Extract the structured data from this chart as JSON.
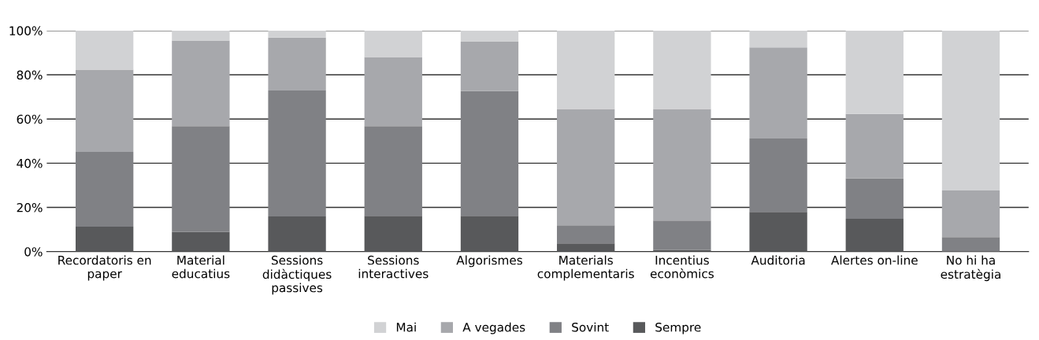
{
  "chart_data": {
    "type": "bar",
    "stacked": true,
    "categories": [
      "Recordatoris en\npaper",
      "Material\neducatius",
      "Sessions\ndidàctiques\npassives",
      "Sessions\ninteractives",
      "Algorismes",
      "Materials\ncomplementaris",
      "Incentius\neconòmics",
      "Auditoria",
      "Alertes on-line",
      "No hi ha\nestratègia"
    ],
    "series": [
      {
        "name": "Sempre",
        "color": "#58595b",
        "values": [
          11.3,
          9.0,
          15.9,
          16.2,
          16.2,
          3.7,
          0.8,
          18.0,
          14.8,
          0
        ]
      },
      {
        "name": "Sovint",
        "color": "#808185",
        "values": [
          33.8,
          47.8,
          57.0,
          40.6,
          56.4,
          8.2,
          13.2,
          33.2,
          18.3,
          6.6
        ]
      },
      {
        "name": "A vegades",
        "color": "#a7a8ac",
        "values": [
          37.2,
          38.7,
          23.9,
          31.2,
          22.4,
          52.6,
          50.5,
          41.2,
          29.2,
          21.1
        ]
      },
      {
        "name": "Mai",
        "color": "#d1d2d4",
        "values": [
          17.7,
          4.5,
          3.2,
          12.0,
          5.0,
          35.5,
          35.5,
          7.6,
          37.7,
          72.3
        ]
      }
    ],
    "ylim": [
      0,
      100
    ],
    "yticks": [
      {
        "value": 0,
        "label": "0%"
      },
      {
        "value": 20,
        "label": "20%"
      },
      {
        "value": 40,
        "label": "40%"
      },
      {
        "value": 60,
        "label": "60%"
      },
      {
        "value": 80,
        "label": "80%"
      },
      {
        "value": 100,
        "label": "100%"
      }
    ],
    "grid": "y",
    "legend": "bottom"
  }
}
